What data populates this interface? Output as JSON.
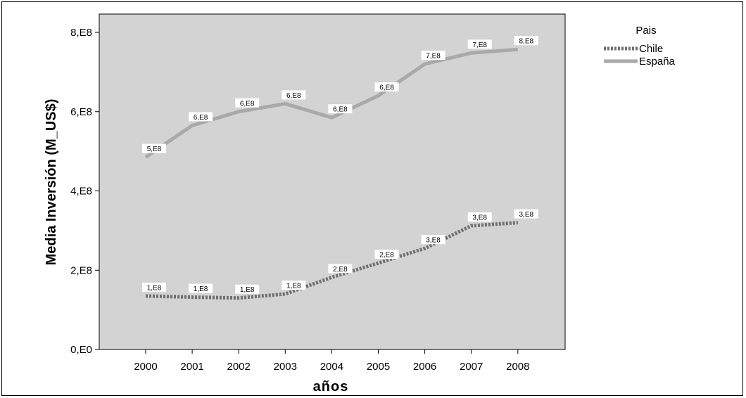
{
  "chart_data": {
    "type": "line",
    "title": "",
    "xlabel": "años",
    "ylabel": "Media Inversión  (M_US$)",
    "x": [
      "2000",
      "2001",
      "2002",
      "2003",
      "2004",
      "2005",
      "2006",
      "2007",
      "2008"
    ],
    "ylim": [
      0,
      850000000
    ],
    "yticks": [
      0,
      200000000,
      400000000,
      600000000,
      800000000
    ],
    "ytick_labels": [
      "0,E0",
      "2,E8",
      "4,E8",
      "6,E8",
      "8,E8"
    ],
    "grid": false,
    "legend": {
      "title": "Pais",
      "position": "top-right"
    },
    "series": [
      {
        "name": "Chile",
        "style": "dotted",
        "color": "#6e6e6e",
        "values": [
          135000000,
          132000000,
          130000000,
          140000000,
          182000000,
          218000000,
          255000000,
          312000000,
          320000000
        ],
        "labels": [
          "1,E8",
          "1,E8",
          "1,E8",
          "1,E8",
          "2,E8",
          "2,E8",
          "3,E8",
          "3,E8",
          "3,E8"
        ]
      },
      {
        "name": "España",
        "style": "solid",
        "color": "#a9a9a9",
        "values": [
          485000000,
          565000000,
          600000000,
          620000000,
          585000000,
          640000000,
          720000000,
          748000000,
          757000000
        ],
        "labels": [
          "5,E8",
          "6,E8",
          "6,E8",
          "6,E8",
          "6,E8",
          "6,E8",
          "7,E8",
          "7,E8",
          "8,E8"
        ]
      }
    ],
    "colors": {
      "plot_background": "#d3d3d3",
      "axis": "#000000"
    }
  }
}
